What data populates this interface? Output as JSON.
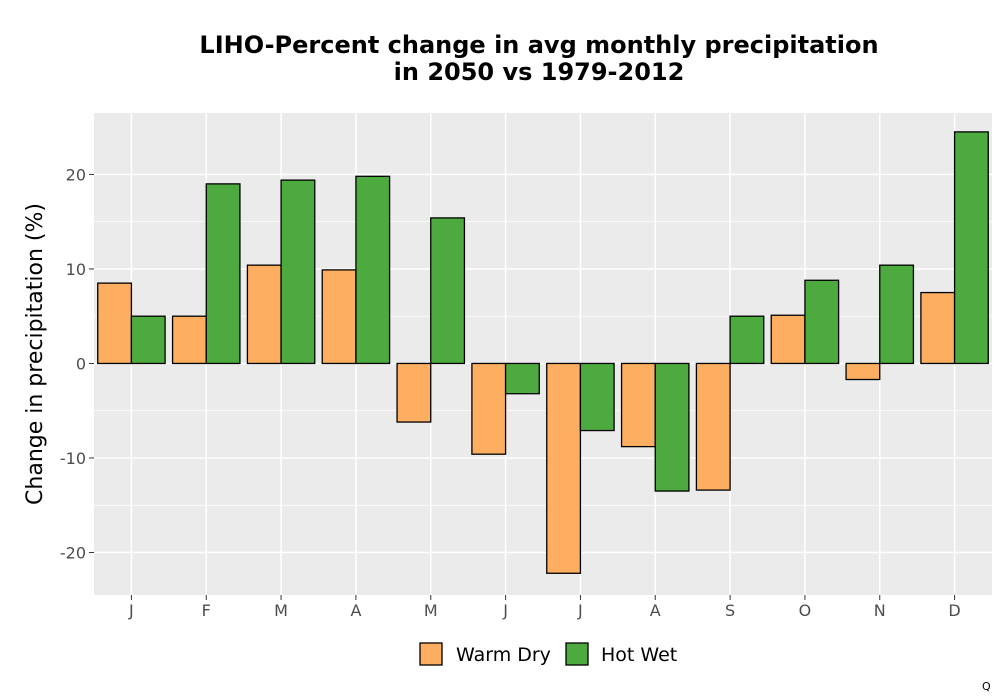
{
  "chart_data": {
    "type": "bar",
    "title_line1": "LIHO-Percent change in avg monthly precipitation",
    "title_line2": "in 2050 vs 1979-2012",
    "xlabel": "",
    "ylabel": "Change in precipitation (%)",
    "categories": [
      "J",
      "F",
      "M",
      "A",
      "M",
      "J",
      "J",
      "A",
      "S",
      "O",
      "N",
      "D"
    ],
    "series": [
      {
        "name": "Warm Dry",
        "color": "#fdae61",
        "values": [
          8.5,
          5.0,
          10.4,
          9.9,
          -6.2,
          -9.6,
          -22.2,
          -8.8,
          -13.4,
          5.1,
          -1.7,
          7.5
        ]
      },
      {
        "name": "Hot Wet",
        "color": "#4daa3f",
        "values": [
          5.0,
          19.0,
          19.4,
          19.8,
          15.4,
          -3.2,
          -7.1,
          -13.5,
          5.0,
          8.8,
          10.4,
          24.5
        ]
      }
    ],
    "ylim": [
      -24.5,
      26.5
    ],
    "yticks": [
      -20,
      -10,
      0,
      10,
      20
    ],
    "ytick_labels": [
      "-20",
      "-10",
      "0",
      "10",
      "20"
    ],
    "grid": true,
    "legend_position": "bottom",
    "panel_color": "#ebebeb",
    "grid_color": "#ffffff"
  },
  "corner_mark": "Q"
}
